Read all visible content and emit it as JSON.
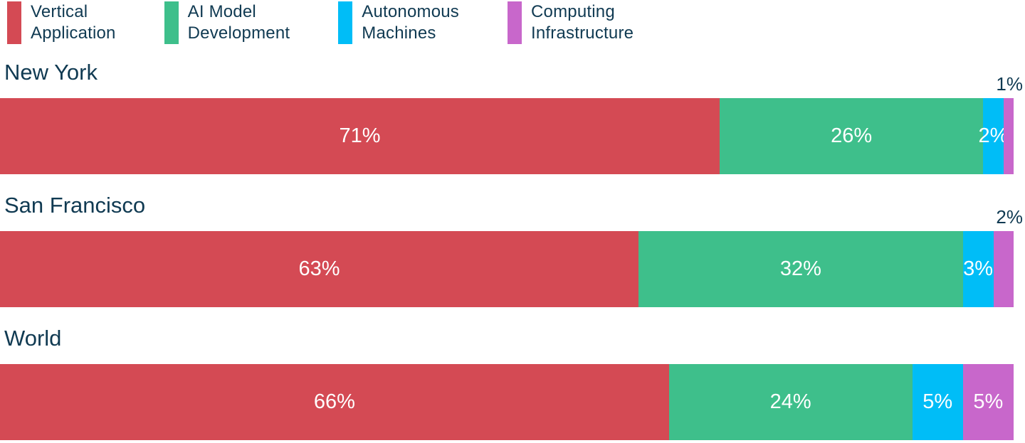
{
  "colors": {
    "background": "#FFFFFF",
    "text": "#103A52",
    "bar_label": "#FFFFFF",
    "vertical_application": "#D44A54",
    "ai_model_development": "#3EBF8B",
    "autonomous_machines": "#00BDF7",
    "computing_infrastructure": "#C867CB"
  },
  "legend": {
    "items": [
      {
        "line1": "Vertical",
        "line2": "Application",
        "color": "#D44A54"
      },
      {
        "line1": "AI Model",
        "line2": "Development",
        "color": "#3EBF8B"
      },
      {
        "line1": "Autonomous",
        "line2": "Machines",
        "color": "#00BDF7"
      },
      {
        "line1": "Computing",
        "line2": "Infrastructure",
        "color": "#C867CB"
      }
    ]
  },
  "chart_data": {
    "type": "bar",
    "variant": "horizontal-stacked",
    "value_format": "percent",
    "xlim": [
      0,
      100
    ],
    "grid": false,
    "legend_position": "top",
    "categories": [
      "New York",
      "San Francisco",
      "World"
    ],
    "series": [
      {
        "name": "Vertical Application",
        "color": "#D44A54",
        "values": [
          71,
          63,
          66
        ]
      },
      {
        "name": "AI Model Development",
        "color": "#3EBF8B",
        "values": [
          26,
          32,
          24
        ]
      },
      {
        "name": "Autonomous Machines",
        "color": "#00BDF7",
        "values": [
          2,
          3,
          5
        ]
      },
      {
        "name": "Computing Infrastructure",
        "color": "#C867CB",
        "values": [
          1,
          2,
          5
        ]
      }
    ]
  },
  "rows": [
    {
      "title": "New York",
      "segments": [
        {
          "series_index": 0,
          "value": 71,
          "label": "71%",
          "label_position": "inside"
        },
        {
          "series_index": 1,
          "value": 26,
          "label": "26%",
          "label_position": "inside"
        },
        {
          "series_index": 2,
          "value": 2,
          "label": "2%",
          "label_position": "inside"
        },
        {
          "series_index": 3,
          "value": 1,
          "label": "1%",
          "label_position": "above"
        }
      ]
    },
    {
      "title": "San Francisco",
      "segments": [
        {
          "series_index": 0,
          "value": 63,
          "label": "63%",
          "label_position": "inside"
        },
        {
          "series_index": 1,
          "value": 32,
          "label": "32%",
          "label_position": "inside"
        },
        {
          "series_index": 2,
          "value": 3,
          "label": "3%",
          "label_position": "inside"
        },
        {
          "series_index": 3,
          "value": 2,
          "label": "2%",
          "label_position": "above"
        }
      ]
    },
    {
      "title": "World",
      "segments": [
        {
          "series_index": 0,
          "value": 66,
          "label": "66%",
          "label_position": "inside"
        },
        {
          "series_index": 1,
          "value": 24,
          "label": "24%",
          "label_position": "inside"
        },
        {
          "series_index": 2,
          "value": 5,
          "label": "5%",
          "label_position": "inside"
        },
        {
          "series_index": 3,
          "value": 5,
          "label": "5%",
          "label_position": "inside"
        }
      ]
    }
  ]
}
